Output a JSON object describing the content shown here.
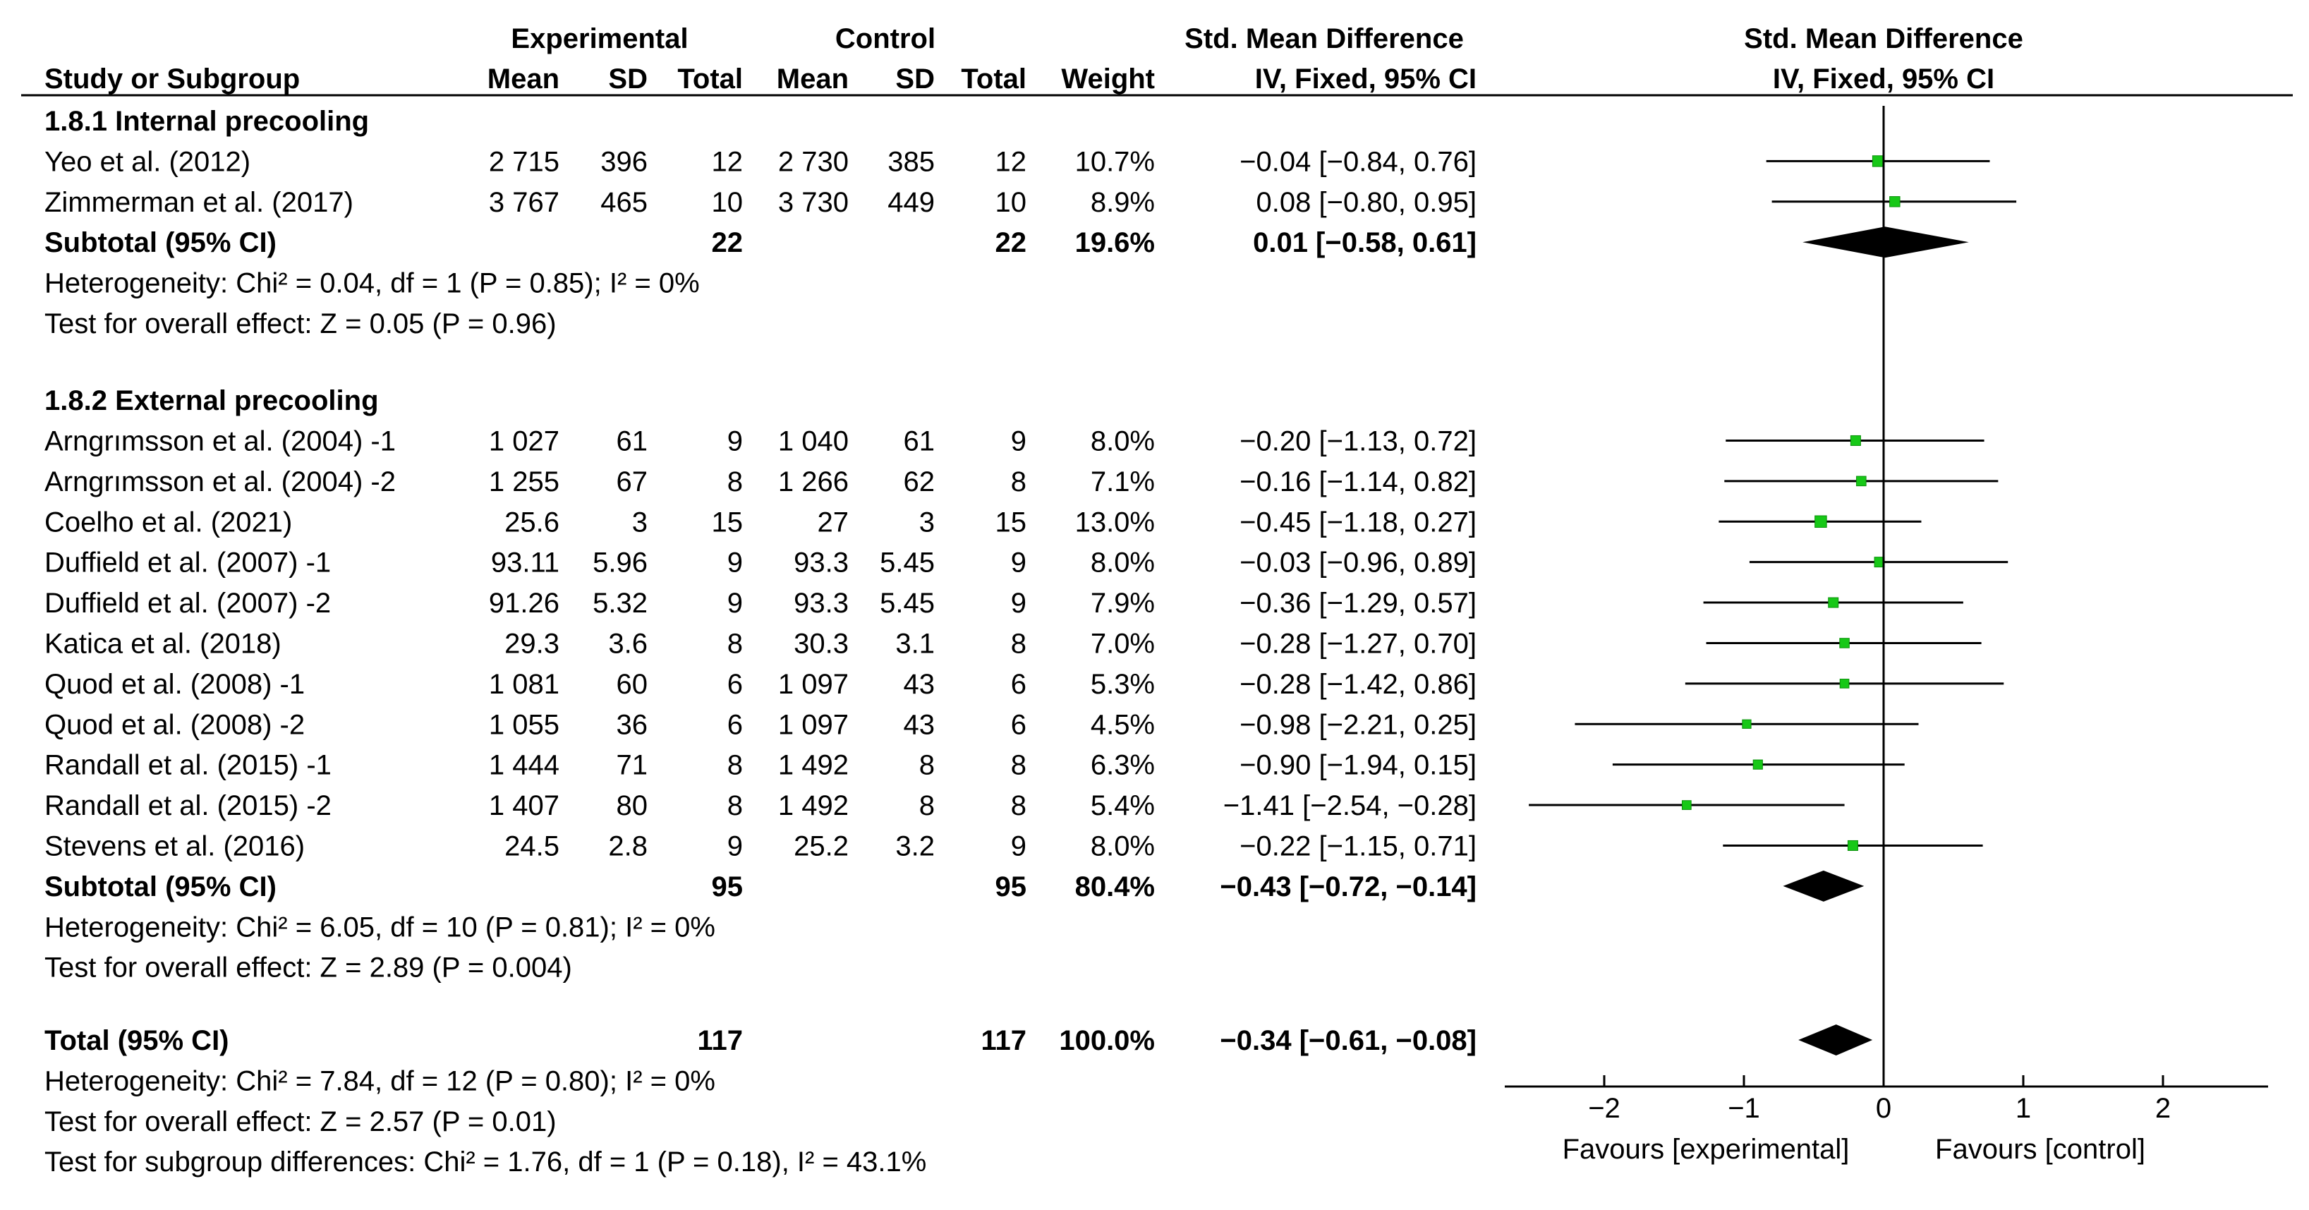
{
  "header": {
    "experimental": "Experimental",
    "control": "Control",
    "smd_table": "Std. Mean Difference",
    "smd_plot": "Std. Mean Difference",
    "study": "Study or Subgroup",
    "mean": "Mean",
    "sd": "SD",
    "total": "Total",
    "weight": "Weight",
    "method_table": "IV, Fixed, 95% CI",
    "method_plot": "IV, Fixed, 95% CI"
  },
  "groups": [
    {
      "title": "1.8.1 Internal precooling",
      "studies": [
        {
          "name": "Yeo et al. (2012)",
          "e_mean": "2 715",
          "e_sd": "396",
          "e_total": "12",
          "c_mean": "2 730",
          "c_sd": "385",
          "c_total": "12",
          "weight": "10.7%",
          "ci": "−0.04 [−0.84, 0.76]",
          "est": -0.04,
          "lo": -0.84,
          "hi": 0.76,
          "w": 10.7
        },
        {
          "name": "Zimmerman et al. (2017)",
          "e_mean": "3 767",
          "e_sd": "465",
          "e_total": "10",
          "c_mean": "3 730",
          "c_sd": "449",
          "c_total": "10",
          "weight": "8.9%",
          "ci": "0.08 [−0.80, 0.95]",
          "est": 0.08,
          "lo": -0.8,
          "hi": 0.95,
          "w": 8.9
        }
      ],
      "subtotal": {
        "label": "Subtotal (95% CI)",
        "e_total": "22",
        "c_total": "22",
        "weight": "19.6%",
        "ci": "0.01 [−0.58, 0.61]",
        "est": 0.01,
        "lo": -0.58,
        "hi": 0.61
      },
      "heterogeneity": "Heterogeneity: Chi² = 0.04, df = 1 (P = 0.85); I² = 0%",
      "overall": "Test for overall effect: Z = 0.05 (P = 0.96)"
    },
    {
      "title": "1.8.2 External precooling",
      "studies": [
        {
          "name": "Arngrımsson et al. (2004) -1",
          "e_mean": "1 027",
          "e_sd": "61",
          "e_total": "9",
          "c_mean": "1 040",
          "c_sd": "61",
          "c_total": "9",
          "weight": "8.0%",
          "ci": "−0.20 [−1.13, 0.72]",
          "est": -0.2,
          "lo": -1.13,
          "hi": 0.72,
          "w": 8.0
        },
        {
          "name": "Arngrımsson et al. (2004) -2",
          "e_mean": "1 255",
          "e_sd": "67",
          "e_total": "8",
          "c_mean": "1 266",
          "c_sd": "62",
          "c_total": "8",
          "weight": "7.1%",
          "ci": "−0.16 [−1.14, 0.82]",
          "est": -0.16,
          "lo": -1.14,
          "hi": 0.82,
          "w": 7.1
        },
        {
          "name": "Coelho et al. (2021)",
          "e_mean": "25.6",
          "e_sd": "3",
          "e_total": "15",
          "c_mean": "27",
          "c_sd": "3",
          "c_total": "15",
          "weight": "13.0%",
          "ci": "−0.45 [−1.18, 0.27]",
          "est": -0.45,
          "lo": -1.18,
          "hi": 0.27,
          "w": 13.0
        },
        {
          "name": "Duffield et al. (2007) -1",
          "e_mean": "93.11",
          "e_sd": "5.96",
          "e_total": "9",
          "c_mean": "93.3",
          "c_sd": "5.45",
          "c_total": "9",
          "weight": "8.0%",
          "ci": "−0.03 [−0.96, 0.89]",
          "est": -0.03,
          "lo": -0.96,
          "hi": 0.89,
          "w": 8.0
        },
        {
          "name": "Duffield et al. (2007) -2",
          "e_mean": "91.26",
          "e_sd": "5.32",
          "e_total": "9",
          "c_mean": "93.3",
          "c_sd": "5.45",
          "c_total": "9",
          "weight": "7.9%",
          "ci": "−0.36 [−1.29, 0.57]",
          "est": -0.36,
          "lo": -1.29,
          "hi": 0.57,
          "w": 7.9
        },
        {
          "name": "Katica et al. (2018)",
          "e_mean": "29.3",
          "e_sd": "3.6",
          "e_total": "8",
          "c_mean": "30.3",
          "c_sd": "3.1",
          "c_total": "8",
          "weight": "7.0%",
          "ci": "−0.28 [−1.27, 0.70]",
          "est": -0.28,
          "lo": -1.27,
          "hi": 0.7,
          "w": 7.0
        },
        {
          "name": "Quod et al. (2008) -1",
          "e_mean": "1 081",
          "e_sd": "60",
          "e_total": "6",
          "c_mean": "1 097",
          "c_sd": "43",
          "c_total": "6",
          "weight": "5.3%",
          "ci": "−0.28 [−1.42, 0.86]",
          "est": -0.28,
          "lo": -1.42,
          "hi": 0.86,
          "w": 5.3
        },
        {
          "name": "Quod et al. (2008) -2",
          "e_mean": "1 055",
          "e_sd": "36",
          "e_total": "6",
          "c_mean": "1 097",
          "c_sd": "43",
          "c_total": "6",
          "weight": "4.5%",
          "ci": "−0.98 [−2.21, 0.25]",
          "est": -0.98,
          "lo": -2.21,
          "hi": 0.25,
          "w": 4.5
        },
        {
          "name": "Randall et al. (2015) -1",
          "e_mean": "1 444",
          "e_sd": "71",
          "e_total": "8",
          "c_mean": "1 492",
          "c_sd": "8",
          "c_total": "8",
          "weight": "6.3%",
          "ci": "−0.90 [−1.94, 0.15]",
          "est": -0.9,
          "lo": -1.94,
          "hi": 0.15,
          "w": 6.3
        },
        {
          "name": "Randall et al. (2015) -2",
          "e_mean": "1 407",
          "e_sd": "80",
          "e_total": "8",
          "c_mean": "1 492",
          "c_sd": "8",
          "c_total": "8",
          "weight": "5.4%",
          "ci": "−1.41 [−2.54, −0.28]",
          "est": -1.41,
          "lo": -2.54,
          "hi": -0.28,
          "w": 5.4
        },
        {
          "name": "Stevens et al. (2016)",
          "e_mean": "24.5",
          "e_sd": "2.8",
          "e_total": "9",
          "c_mean": "25.2",
          "c_sd": "3.2",
          "c_total": "9",
          "weight": "8.0%",
          "ci": "−0.22 [−1.15, 0.71]",
          "est": -0.22,
          "lo": -1.15,
          "hi": 0.71,
          "w": 8.0
        }
      ],
      "subtotal": {
        "label": "Subtotal (95% CI)",
        "e_total": "95",
        "c_total": "95",
        "weight": "80.4%",
        "ci": "−0.43 [−0.72, −0.14]",
        "est": -0.43,
        "lo": -0.72,
        "hi": -0.14
      },
      "heterogeneity": "Heterogeneity: Chi² = 6.05, df = 10 (P = 0.81); I² = 0%",
      "overall": "Test for overall effect: Z = 2.89 (P = 0.004)"
    }
  ],
  "total": {
    "label": "Total (95% CI)",
    "e_total": "117",
    "c_total": "117",
    "weight": "100.0%",
    "ci": "−0.34 [−0.61, −0.08]",
    "est": -0.34,
    "lo": -0.61,
    "hi": -0.08
  },
  "footer": [
    "Heterogeneity: Chi² = 7.84, df = 12 (P = 0.80); I² = 0%",
    "Test for overall effect: Z = 2.57 (P = 0.01)",
    "Test for subgroup differences: Chi² = 1.76, df = 1 (P = 0.18), I² = 43.1%"
  ],
  "axis": {
    "ticks": [
      -2,
      -1,
      0,
      1,
      2
    ],
    "tick_labels": [
      "−2",
      "−1",
      "0",
      "1",
      "2"
    ],
    "xlim": [
      -2.6,
      2.7
    ],
    "favours_left": "Favours [experimental]",
    "favours_right": "Favours [control]"
  },
  "colors": {
    "point": "#17c817",
    "diamond": "#000000",
    "line": "#000000"
  },
  "chart_data": {
    "type": "forest",
    "title": "",
    "xlabel": "Std. Mean Difference IV, Fixed, 95% CI",
    "xlim": [
      -2.6,
      2.7
    ],
    "null_line": 0,
    "series": [
      {
        "name": "1.8.1 Internal precooling",
        "labels": [
          "Yeo et al. (2012)",
          "Zimmerman et al. (2017)"
        ],
        "estimates": [
          -0.04,
          0.08
        ],
        "lower": [
          -0.84,
          -0.8
        ],
        "upper": [
          0.76,
          0.95
        ],
        "weights": [
          10.7,
          8.9
        ],
        "subtotal": {
          "estimate": 0.01,
          "lower": -0.58,
          "upper": 0.61,
          "weight": 19.6
        }
      },
      {
        "name": "1.8.2 External precooling",
        "labels": [
          "Arngrımsson et al. (2004) -1",
          "Arngrımsson et al. (2004) -2",
          "Coelho et al. (2021)",
          "Duffield et al. (2007) -1",
          "Duffield et al. (2007) -2",
          "Katica et al. (2018)",
          "Quod et al. (2008) -1",
          "Quod et al. (2008) -2",
          "Randall et al. (2015) -1",
          "Randall et al. (2015) -2",
          "Stevens et al. (2016)"
        ],
        "estimates": [
          -0.2,
          -0.16,
          -0.45,
          -0.03,
          -0.36,
          -0.28,
          -0.28,
          -0.98,
          -0.9,
          -1.41,
          -0.22
        ],
        "lower": [
          -1.13,
          -1.14,
          -1.18,
          -0.96,
          -1.29,
          -1.27,
          -1.42,
          -2.21,
          -1.94,
          -2.54,
          -1.15
        ],
        "upper": [
          0.72,
          0.82,
          0.27,
          0.89,
          0.57,
          0.7,
          0.86,
          0.25,
          0.15,
          -0.28,
          0.71
        ],
        "weights": [
          8.0,
          7.1,
          13.0,
          8.0,
          7.9,
          7.0,
          5.3,
          4.5,
          6.3,
          5.4,
          8.0
        ],
        "subtotal": {
          "estimate": -0.43,
          "lower": -0.72,
          "upper": -0.14,
          "weight": 80.4
        }
      }
    ],
    "overall": {
      "estimate": -0.34,
      "lower": -0.61,
      "upper": -0.08,
      "weight": 100.0
    }
  }
}
